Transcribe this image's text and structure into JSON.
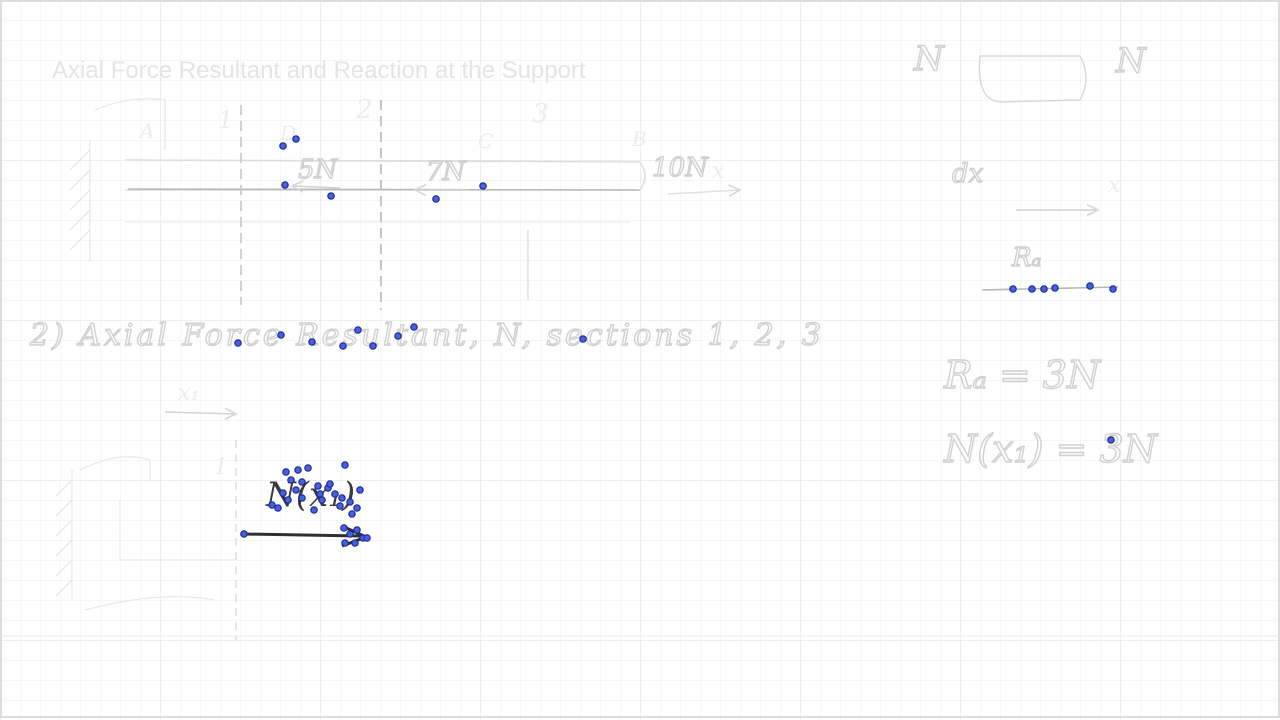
{
  "title": "Axial Force Resultant and Reaction at the Support",
  "beam": {
    "section_labels": [
      "1",
      "2",
      "3"
    ],
    "point_labels": [
      "A",
      "B",
      "C",
      "D"
    ],
    "loads": [
      "5N",
      "7N",
      "10N"
    ],
    "axis_label": "x"
  },
  "subtitle": "2) Axial Force Resultant, N, sections 1, 2, 3",
  "cut_diagram": {
    "x_label": "x₁",
    "section_label": "1",
    "force_label": "N(x₁)"
  },
  "right_panel": {
    "n_left": "N",
    "n_right": "N",
    "dx_label": "dx",
    "x_label": "x",
    "r_label": "Rₐ",
    "eq1": "Rₐ = 3N",
    "eq2": "N(x₁) = 3N"
  },
  "colors": {
    "grid": "#ececec",
    "grid_major": "#e2e2e2",
    "marker_fill": "#4a5fd8",
    "marker_stroke": "#1a2a9a",
    "arrow": "#333333"
  },
  "icons": {
    "pen_marker": "pen-stroke-point-icon"
  }
}
